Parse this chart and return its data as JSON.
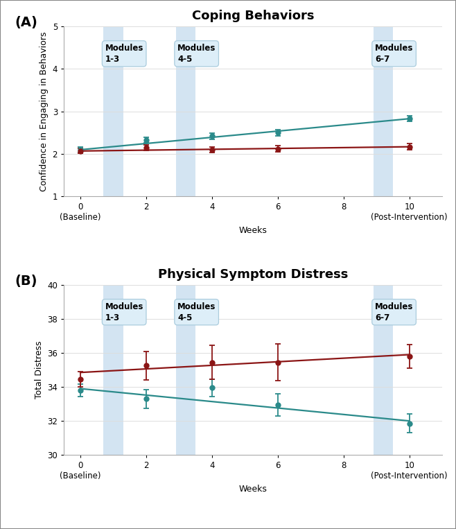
{
  "panel_A": {
    "title": "Coping Behaviors",
    "ylabel": "Confidence in Engaging in Behaviors",
    "xlabel": "Weeks",
    "ylim": [
      1,
      5
    ],
    "yticks": [
      1,
      2,
      3,
      4,
      5
    ],
    "xticks": [
      0,
      2,
      4,
      6,
      8,
      10
    ],
    "mindset_x": [
      0,
      2,
      4,
      6,
      10
    ],
    "mindset_y": [
      2.1,
      2.33,
      2.42,
      2.5,
      2.83
    ],
    "mindset_yerr": [
      0.06,
      0.07,
      0.07,
      0.07,
      0.07
    ],
    "control_x": [
      0,
      2,
      4,
      6,
      10
    ],
    "control_y": [
      2.07,
      2.15,
      2.1,
      2.12,
      2.17
    ],
    "control_yerr": [
      0.06,
      0.07,
      0.07,
      0.07,
      0.07
    ],
    "mindset_trend_x": [
      0,
      10
    ],
    "mindset_trend_y": [
      2.1,
      2.83
    ],
    "control_trend_x": [
      0,
      10
    ],
    "control_trend_y": [
      2.07,
      2.17
    ]
  },
  "panel_B": {
    "title": "Physical Symptom Distress",
    "ylabel": "Total Distress",
    "xlabel": "Weeks",
    "ylim": [
      30,
      40
    ],
    "yticks": [
      30,
      32,
      34,
      36,
      38,
      40
    ],
    "xticks": [
      0,
      2,
      4,
      6,
      8,
      10
    ],
    "mindset_x": [
      0,
      2,
      4,
      6,
      10
    ],
    "mindset_y": [
      33.8,
      33.3,
      33.95,
      32.95,
      31.85
    ],
    "mindset_yerr": [
      0.35,
      0.55,
      0.5,
      0.65,
      0.55
    ],
    "control_x": [
      0,
      2,
      4,
      6,
      10
    ],
    "control_y": [
      34.45,
      35.25,
      35.45,
      35.45,
      35.8
    ],
    "control_yerr": [
      0.45,
      0.85,
      1.0,
      1.1,
      0.7
    ],
    "mindset_trend_x": [
      0,
      10
    ],
    "mindset_trend_y": [
      33.9,
      32.0
    ],
    "control_trend_x": [
      0,
      10
    ],
    "control_trend_y": [
      34.85,
      35.9
    ]
  },
  "modules": {
    "shading": [
      {
        "xmin": 0.7,
        "xmax": 1.3,
        "label": "Modules\n1-3"
      },
      {
        "xmin": 2.9,
        "xmax": 3.5,
        "label": "Modules\n4-5"
      },
      {
        "xmin": 8.9,
        "xmax": 9.5,
        "label": "Modules\n6-7"
      }
    ]
  },
  "mindset_color": "#2a8a8a",
  "control_color": "#8b1515",
  "shade_color": "#cce0f0",
  "box_facecolor": "#ddeef8",
  "box_edgecolor": "#aaccdd",
  "fig_border_color": "#888888",
  "grid_color": "#dddddd",
  "tick_fontsize": 8.5,
  "label_fontsize": 9,
  "title_fontsize": 13,
  "panel_label_fontsize": 14,
  "legend_fontsize": 10
}
